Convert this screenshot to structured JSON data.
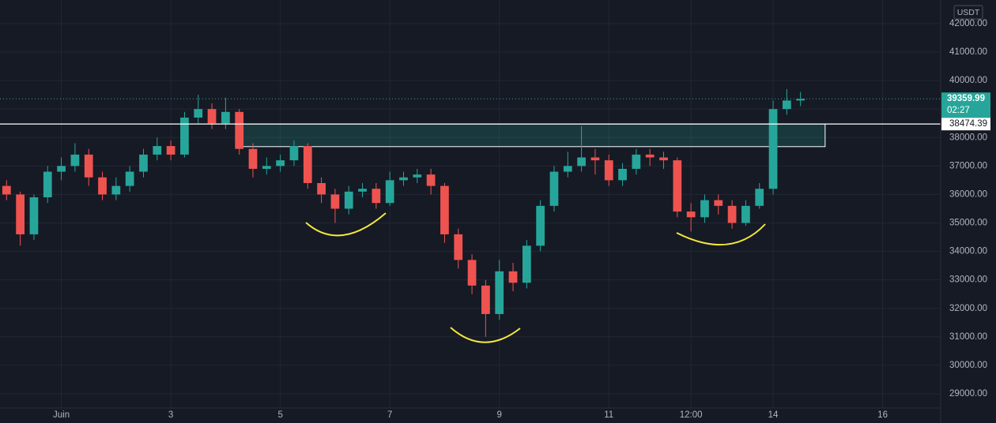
{
  "chart_data": {
    "type": "candlestick",
    "currency": "USDT",
    "x": [
      0,
      0.25,
      0.5,
      0.75,
      1,
      1.25,
      1.5,
      1.75,
      2,
      2.25,
      2.5,
      2.75,
      3,
      3.25,
      3.5,
      3.75,
      4,
      4.25,
      4.5,
      4.75,
      5,
      5.25,
      5.5,
      5.75,
      6,
      6.25,
      6.5,
      6.75,
      7,
      7.25,
      7.5,
      7.75,
      8,
      8.25,
      8.5,
      8.75,
      9,
      9.25,
      9.5,
      9.75,
      10,
      10.25,
      10.5,
      10.75,
      11,
      11.25,
      11.5,
      11.75,
      12,
      12.25,
      12.5,
      12.75,
      13,
      13.25,
      13.5,
      13.75,
      14,
      14.25,
      14.5
    ],
    "open": [
      36300,
      36000,
      34600,
      35900,
      36800,
      37000,
      37400,
      36600,
      36000,
      36300,
      36800,
      37400,
      37700,
      37400,
      38700,
      39000,
      38500,
      38900,
      37600,
      36900,
      37000,
      37200,
      37700,
      36400,
      36000,
      35500,
      36100,
      36200,
      35700,
      36500,
      36600,
      36700,
      36300,
      34600,
      33700,
      32800,
      31800,
      33300,
      32900,
      34200,
      35600,
      36800,
      37000,
      37300,
      37200,
      36500,
      36900,
      37400,
      37300,
      37200,
      35400,
      35200,
      35800,
      35600,
      35000,
      35600,
      36200,
      39000,
      39300
    ],
    "high": [
      36500,
      36100,
      36000,
      37000,
      37300,
      37800,
      37600,
      36800,
      36600,
      37000,
      37600,
      38000,
      37900,
      38900,
      39500,
      39200,
      39400,
      39000,
      37800,
      37300,
      37400,
      37900,
      37800,
      36600,
      36200,
      36300,
      36400,
      36400,
      36800,
      36800,
      36900,
      36900,
      36400,
      34800,
      33900,
      33000,
      33700,
      33600,
      34400,
      35800,
      37000,
      37500,
      38400,
      37600,
      37400,
      37100,
      37600,
      37600,
      37500,
      37300,
      35700,
      36000,
      36000,
      35800,
      35800,
      36400,
      39300,
      39700,
      39600
    ],
    "low": [
      35800,
      34200,
      34400,
      35700,
      36500,
      36800,
      36300,
      35800,
      35800,
      36100,
      36600,
      37200,
      37200,
      37300,
      38500,
      38300,
      38300,
      37400,
      36600,
      36700,
      36800,
      37000,
      36200,
      35700,
      35000,
      35300,
      35900,
      35500,
      35600,
      36300,
      36400,
      36000,
      34300,
      33400,
      32500,
      31000,
      31600,
      32600,
      32700,
      34000,
      35400,
      36600,
      36800,
      36700,
      36300,
      36300,
      36700,
      37000,
      36900,
      35200,
      34700,
      35000,
      35300,
      34800,
      34900,
      35500,
      36000,
      38800,
      39100
    ],
    "close": [
      36000,
      34600,
      35900,
      36800,
      37000,
      37400,
      36600,
      36000,
      36300,
      36800,
      37400,
      37700,
      37400,
      38700,
      39000,
      38500,
      38900,
      37600,
      36900,
      37000,
      37200,
      37700,
      36400,
      36000,
      35500,
      36100,
      36200,
      35700,
      36500,
      36600,
      36700,
      36300,
      34600,
      33700,
      32800,
      31800,
      33300,
      32900,
      34200,
      35600,
      36800,
      37000,
      37300,
      37200,
      36500,
      36900,
      37400,
      37300,
      37200,
      35400,
      35200,
      35800,
      35600,
      35000,
      35600,
      36200,
      39000,
      39300,
      39359.99
    ],
    "up_color": "#26a69a",
    "down_color": "#ef5350",
    "countdown": "02:27",
    "horizontal_line": {
      "value": 38474.39,
      "color": "#ffffff"
    },
    "zone": {
      "ylim": [
        37680,
        38474.39
      ],
      "xlim": [
        4.2,
        14.95
      ]
    },
    "xlim": [
      -0.12,
      17.06
    ],
    "xticks": [
      {
        "value": 1,
        "label": "Juin"
      },
      3,
      5,
      7,
      9,
      11,
      {
        "value": 12.5,
        "label": "12:00"
      },
      14,
      16
    ],
    "ylim": [
      28500,
      42830
    ],
    "yticks": [
      {
        "value": 29000,
        "label": "29000.00"
      },
      {
        "value": 30000,
        "label": "30000.00"
      },
      {
        "value": 31000,
        "label": "31000.00"
      },
      {
        "value": 32000,
        "label": "32000.00"
      },
      {
        "value": 33000,
        "label": "33000.00"
      },
      {
        "value": 34000,
        "label": "34000.00"
      },
      {
        "value": 35000,
        "label": "35000.00"
      },
      {
        "value": 36000,
        "label": "36000.00"
      },
      {
        "value": 37000,
        "label": "37000.00"
      },
      {
        "value": 38000,
        "label": "38000.00"
      },
      {
        "value": 39000,
        "label": "39000.00"
      },
      {
        "value": 40000,
        "label": "40000.00"
      },
      {
        "value": 41000,
        "label": "41000.00"
      },
      {
        "value": 42000,
        "label": "42000.00"
      }
    ],
    "grid": true
  }
}
